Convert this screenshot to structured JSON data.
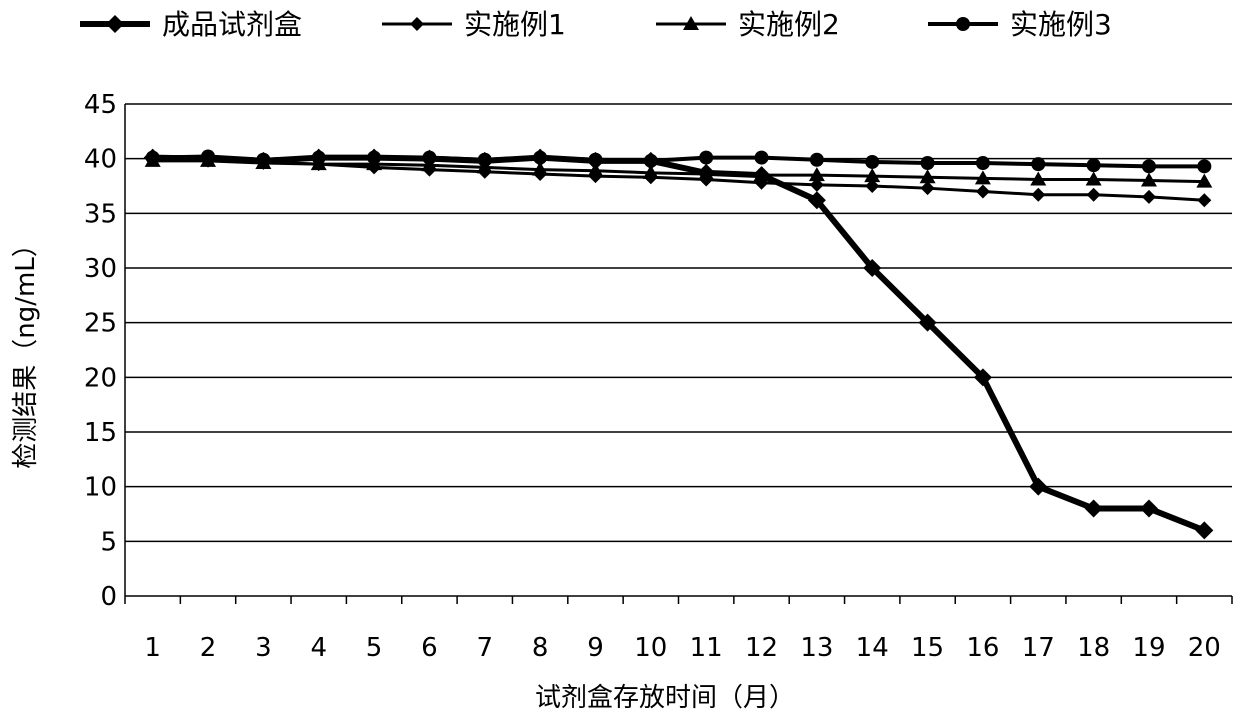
{
  "chart_data": {
    "type": "line",
    "xlabel": "试剂盒存放时间（月）",
    "ylabel": "检测结果（ng/mL）",
    "x": [
      1,
      2,
      3,
      4,
      5,
      6,
      7,
      8,
      9,
      10,
      11,
      12,
      13,
      14,
      15,
      16,
      17,
      18,
      19,
      20
    ],
    "ylim": [
      0,
      45
    ],
    "yticks": [
      0,
      5,
      10,
      15,
      20,
      25,
      30,
      35,
      40,
      45
    ],
    "grid": true,
    "legend_position": "top",
    "series": [
      {
        "name": "成品试剂盒",
        "marker": "diamond-large",
        "stroke_width": 6,
        "values": [
          40.1,
          40.0,
          39.8,
          40.1,
          40.1,
          40.0,
          39.8,
          40.1,
          39.8,
          39.8,
          38.7,
          38.5,
          36.2,
          30.0,
          25.0,
          20.0,
          10.0,
          8.0,
          8.0,
          6.0
        ]
      },
      {
        "name": "实施例1",
        "marker": "diamond-small",
        "stroke_width": 3,
        "values": [
          40.0,
          40.1,
          39.7,
          39.5,
          39.2,
          39.0,
          38.8,
          38.6,
          38.4,
          38.3,
          38.1,
          37.8,
          37.6,
          37.5,
          37.3,
          37.0,
          36.7,
          36.7,
          36.5,
          36.2
        ]
      },
      {
        "name": "实施例2",
        "marker": "triangle",
        "stroke_width": 3,
        "values": [
          39.8,
          39.8,
          39.6,
          39.5,
          39.5,
          39.4,
          39.2,
          39.0,
          38.9,
          38.7,
          38.6,
          38.5,
          38.5,
          38.4,
          38.3,
          38.2,
          38.1,
          38.1,
          38.0,
          37.9
        ]
      },
      {
        "name": "实施例3",
        "marker": "circle",
        "stroke_width": 4,
        "values": [
          40.1,
          40.2,
          39.9,
          40.1,
          40.1,
          40.1,
          39.9,
          40.1,
          39.9,
          39.8,
          40.1,
          40.1,
          39.9,
          39.7,
          39.6,
          39.6,
          39.5,
          39.4,
          39.3,
          39.3
        ]
      }
    ],
    "colors": {
      "line": "#000000",
      "grid": "#000000",
      "background": "#ffffff"
    }
  }
}
